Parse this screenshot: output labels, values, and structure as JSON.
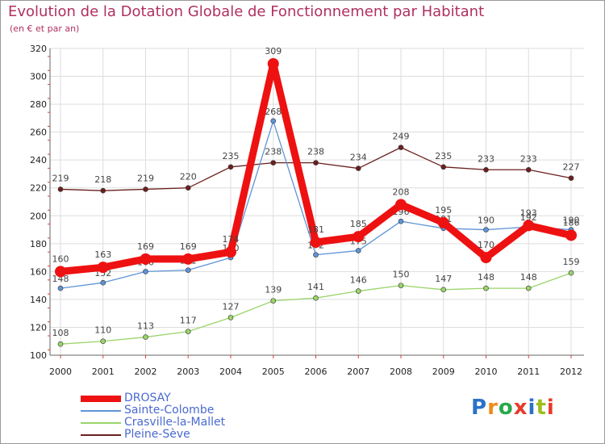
{
  "header": {
    "title": "Evolution de la Dotation Globale de Fonctionnement par Habitant",
    "subtitle": "(en € et par an)"
  },
  "logo": {
    "text": "Proxiti",
    "colors": [
      "#2a72c8",
      "#f08a1c",
      "#2aa84a",
      "#e83a2a",
      "#2a72c8",
      "#9bbf1f",
      "#e83a2a"
    ]
  },
  "chart_data": {
    "type": "line",
    "title": "Evolution de la Dotation Globale de Fonctionnement par Habitant",
    "subtitle": "(en € et par an)",
    "xlabel": "",
    "ylabel": "",
    "ylim": [
      100,
      320
    ],
    "yticks": [
      100,
      120,
      140,
      160,
      180,
      200,
      220,
      240,
      260,
      280,
      300,
      320
    ],
    "categories": [
      "2000",
      "2001",
      "2002",
      "2003",
      "2004",
      "2005",
      "2006",
      "2007",
      "2008",
      "2009",
      "2010",
      "2011",
      "2012"
    ],
    "grid": true,
    "legend_position": "bottom-left",
    "series": [
      {
        "name": "Pleine-Sève",
        "color": "#6b1f1f",
        "values": [
          219,
          218,
          219,
          220,
          235,
          238,
          238,
          234,
          249,
          235,
          233,
          233,
          227
        ]
      },
      {
        "name": "Crasville-la-Mallet",
        "color": "#9ad46a",
        "values": [
          108,
          110,
          113,
          117,
          127,
          139,
          141,
          146,
          150,
          147,
          148,
          148,
          159
        ]
      },
      {
        "name": "Sainte-Colombe",
        "color": "#5f94d6",
        "values": [
          148,
          152,
          160,
          161,
          170,
          268,
          172,
          175,
          196,
          191,
          190,
          192,
          190
        ]
      },
      {
        "name": "DROSAY",
        "color": "#ee1111",
        "values": [
          160,
          163,
          169,
          169,
          174,
          309,
          181,
          185,
          208,
          195,
          170,
          193,
          186
        ]
      }
    ],
    "legend": [
      "DROSAY",
      "Sainte-Colombe",
      "Crasville-la-Mallet",
      "Pleine-Sève"
    ]
  }
}
